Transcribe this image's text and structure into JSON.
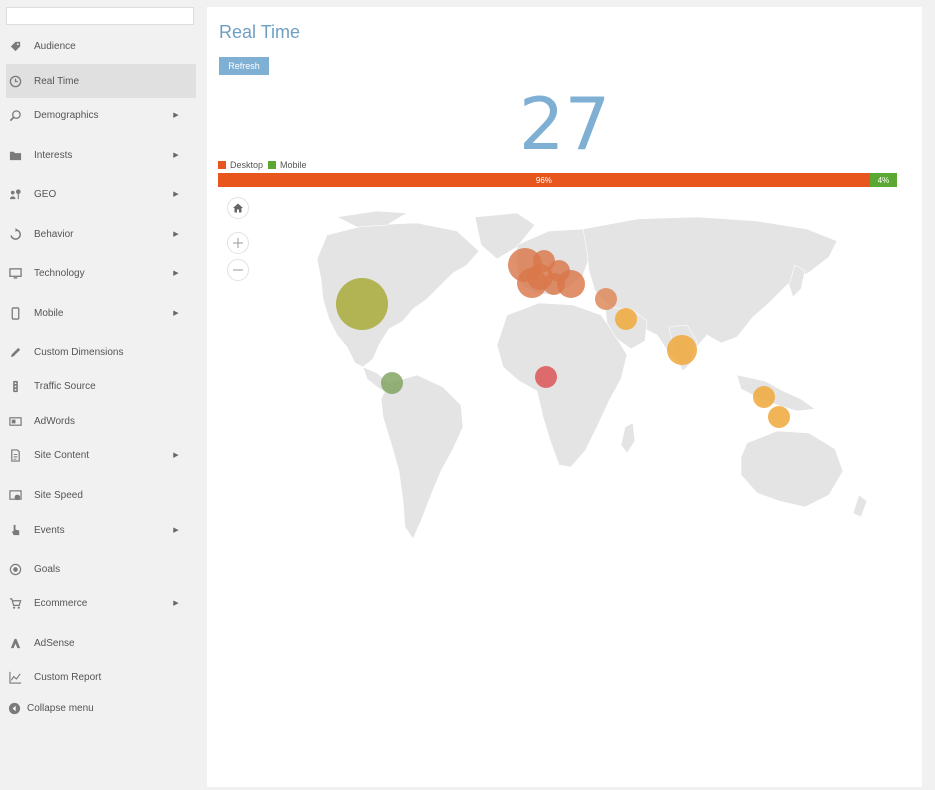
{
  "sidebar": {
    "search": {
      "placeholder": "",
      "value": ""
    },
    "items": [
      {
        "key": "audience",
        "label": "Audience",
        "icon": "tag-icon",
        "has_submenu": false
      },
      {
        "key": "real-time",
        "label": "Real Time",
        "icon": "clock-icon",
        "has_submenu": false,
        "active": true
      },
      {
        "key": "demographics",
        "label": "Demographics",
        "icon": "magnifier-person-icon",
        "has_submenu": true
      },
      {
        "key": "interests",
        "label": "Interests",
        "icon": "folder-icon",
        "has_submenu": true
      },
      {
        "key": "geo",
        "label": "GEO",
        "icon": "people-location-icon",
        "has_submenu": true
      },
      {
        "key": "behavior",
        "label": "Behavior",
        "icon": "refresh-loop-icon",
        "has_submenu": true
      },
      {
        "key": "technology",
        "label": "Technology",
        "icon": "monitor-icon",
        "has_submenu": true
      },
      {
        "key": "mobile",
        "label": "Mobile",
        "icon": "smartphone-icon",
        "has_submenu": true
      },
      {
        "key": "custom-dimensions",
        "label": "Custom Dimensions",
        "icon": "pencil-icon",
        "has_submenu": false
      },
      {
        "key": "traffic-source",
        "label": "Traffic Source",
        "icon": "traffic-light-icon",
        "has_submenu": false
      },
      {
        "key": "adwords",
        "label": "AdWords",
        "icon": "ad-card-icon",
        "has_submenu": false
      },
      {
        "key": "site-content",
        "label": "Site Content",
        "icon": "document-icon",
        "has_submenu": true
      },
      {
        "key": "site-speed",
        "label": "Site Speed",
        "icon": "speed-screen-icon",
        "has_submenu": false
      },
      {
        "key": "events",
        "label": "Events",
        "icon": "pointer-hand-icon",
        "has_submenu": true
      },
      {
        "key": "goals",
        "label": "Goals",
        "icon": "target-icon",
        "has_submenu": false
      },
      {
        "key": "ecommerce",
        "label": "Ecommerce",
        "icon": "cart-icon",
        "has_submenu": true
      },
      {
        "key": "adsense",
        "label": "AdSense",
        "icon": "adsense-icon",
        "has_submenu": false
      },
      {
        "key": "custom-report",
        "label": "Custom Report",
        "icon": "line-chart-icon",
        "has_submenu": false
      }
    ],
    "submenu_arrow": "▶",
    "collapse": {
      "label": "Collapse menu",
      "icon": "collapse-arrow-icon"
    }
  },
  "main": {
    "title": "Real Time",
    "refresh_label": "Refresh",
    "active_users": "27",
    "legend": [
      {
        "label": "Desktop",
        "color": "#e8561e"
      },
      {
        "label": "Mobile",
        "color": "#5aa832"
      }
    ],
    "device_split": [
      {
        "name": "Desktop",
        "percent": 96,
        "label": "96%",
        "color": "#e8561e"
      },
      {
        "name": "Mobile",
        "percent": 4,
        "label": "4%",
        "color": "#5aa832"
      }
    ],
    "map": {
      "land_color": "#e4e4e4",
      "controls": [
        "home-icon",
        "zoom-in-icon",
        "zoom-out-icon"
      ],
      "bubbles_count": 14
    }
  }
}
